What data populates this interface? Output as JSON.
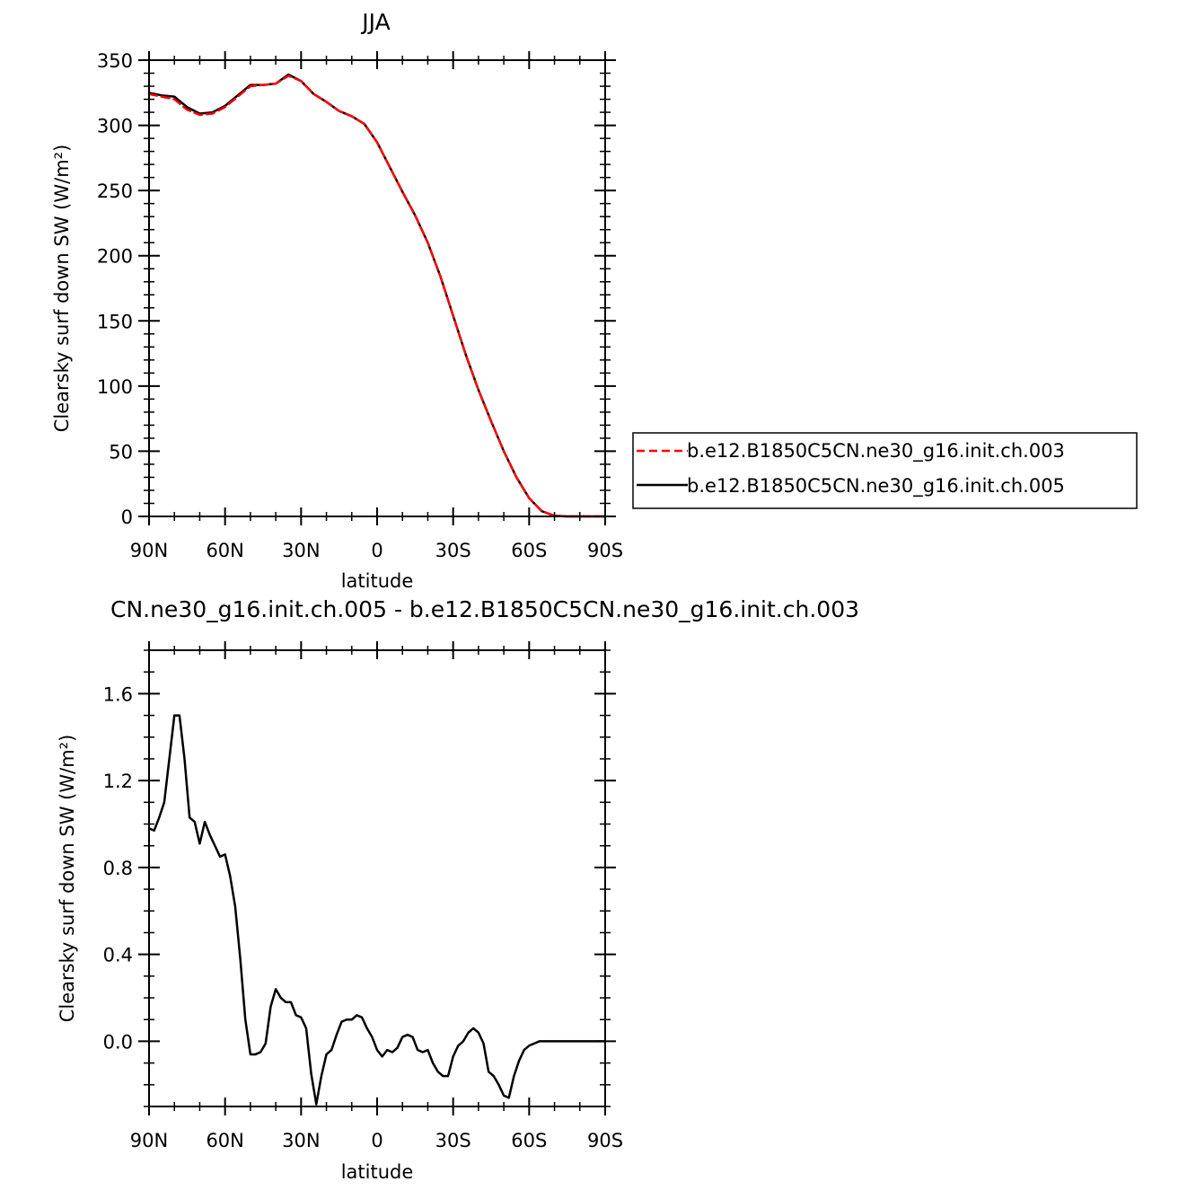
{
  "chart_data": [
    {
      "type": "line",
      "title": "JJA",
      "xlabel": "latitude",
      "ylabel": "Clearsky surf down SW (W/m²)",
      "xlim": [
        90,
        -90
      ],
      "ylim": [
        0,
        350
      ],
      "x_ticks": [
        90,
        60,
        30,
        0,
        -30,
        -60,
        -90
      ],
      "x_tick_labels": [
        "90N",
        "60N",
        "30N",
        "0",
        "30S",
        "60S",
        "90S"
      ],
      "y_ticks": [
        0,
        50,
        100,
        150,
        200,
        250,
        300,
        350
      ],
      "y_tick_labels": [
        "0",
        "50",
        "100",
        "150",
        "200",
        "250",
        "300",
        "350"
      ],
      "legend_position": "right-bottom",
      "series": [
        {
          "name": "b.e12.B1850C5CN.ne30_g16.init.ch.003",
          "color": "#ff0000",
          "dash": "dashed",
          "x": [
            90,
            85,
            80,
            75,
            70,
            65,
            60,
            55,
            50,
            45,
            40,
            35,
            30,
            25,
            20,
            15,
            10,
            5,
            0,
            -5,
            -10,
            -15,
            -20,
            -25,
            -30,
            -35,
            -40,
            -45,
            -50,
            -55,
            -60,
            -65,
            -70,
            -75,
            -80,
            -85,
            -90
          ],
          "y": [
            324,
            322,
            320,
            312,
            308,
            309,
            314,
            322,
            330,
            331,
            332,
            338,
            334,
            324,
            318,
            311,
            307,
            301,
            287,
            268,
            249,
            231,
            210,
            184,
            154,
            124,
            97,
            73,
            50,
            30,
            14,
            4,
            0.5,
            0,
            0,
            0,
            0
          ]
        },
        {
          "name": "b.e12.B1850C5CN.ne30_g16.init.ch.005",
          "color": "#000000",
          "dash": "solid",
          "x": [
            90,
            85,
            80,
            75,
            70,
            65,
            60,
            55,
            50,
            45,
            40,
            35,
            30,
            25,
            20,
            15,
            10,
            5,
            0,
            -5,
            -10,
            -15,
            -20,
            -25,
            -30,
            -35,
            -40,
            -45,
            -50,
            -55,
            -60,
            -65,
            -70,
            -75,
            -80,
            -85,
            -90
          ],
          "y": [
            325,
            323,
            322,
            314,
            309,
            310,
            315,
            323,
            331,
            331,
            332,
            339,
            334,
            324,
            318,
            311,
            307,
            301,
            287,
            268,
            249,
            231,
            210,
            184,
            154,
            124,
            97,
            73,
            50,
            30,
            14,
            4,
            0.5,
            0,
            0,
            0,
            0
          ]
        }
      ]
    },
    {
      "type": "line",
      "title": "CN.ne30_g16.init.ch.005 - b.e12.B1850C5CN.ne30_g16.init.ch.003",
      "xlabel": "latitude",
      "ylabel": "Clearsky surf down SW (W/m²)",
      "xlim": [
        90,
        -90
      ],
      "ylim": [
        -0.3,
        1.8
      ],
      "x_ticks": [
        90,
        60,
        30,
        0,
        -30,
        -60,
        -90
      ],
      "x_tick_labels": [
        "90N",
        "60N",
        "30N",
        "0",
        "30S",
        "60S",
        "90S"
      ],
      "y_ticks": [
        0,
        0.4,
        0.8,
        1.2,
        1.6
      ],
      "y_tick_labels": [
        "0.0",
        "0.4",
        "0.8",
        "1.2",
        "1.6"
      ],
      "series": [
        {
          "color": "#000000",
          "dash": "solid",
          "x": [
            90,
            88,
            86,
            84,
            82,
            80,
            78,
            76,
            74,
            72,
            70,
            68,
            66,
            64,
            62,
            60,
            58,
            56,
            54,
            52,
            50,
            48,
            46,
            44,
            42,
            40,
            38,
            36,
            34,
            32,
            30,
            28,
            26,
            24,
            22,
            20,
            18,
            16,
            14,
            12,
            10,
            8,
            6,
            4,
            2,
            0,
            -2,
            -4,
            -6,
            -8,
            -10,
            -12,
            -14,
            -16,
            -18,
            -20,
            -22,
            -24,
            -26,
            -28,
            -30,
            -32,
            -34,
            -36,
            -38,
            -40,
            -42,
            -44,
            -46,
            -48,
            -50,
            -52,
            -54,
            -56,
            -58,
            -60,
            -62,
            -64,
            -66,
            -68,
            -70,
            -72,
            -74,
            -76,
            -78,
            -80,
            -82,
            -84,
            -86,
            -88,
            -90
          ],
          "y": [
            0.98,
            0.97,
            1.03,
            1.1,
            1.3,
            1.5,
            1.5,
            1.3,
            1.03,
            1.01,
            0.91,
            1.01,
            0.95,
            0.9,
            0.85,
            0.86,
            0.76,
            0.62,
            0.38,
            0.1,
            -0.06,
            -0.06,
            -0.05,
            -0.01,
            0.16,
            0.24,
            0.2,
            0.18,
            0.18,
            0.12,
            0.11,
            0.06,
            -0.15,
            -0.29,
            -0.16,
            -0.06,
            -0.04,
            0.03,
            0.09,
            0.1,
            0.1,
            0.12,
            0.11,
            0.06,
            0.02,
            -0.04,
            -0.07,
            -0.04,
            -0.05,
            -0.03,
            0.02,
            0.03,
            0.02,
            -0.04,
            -0.05,
            -0.04,
            -0.1,
            -0.14,
            -0.16,
            -0.16,
            -0.07,
            -0.02,
            0.0,
            0.04,
            0.06,
            0.04,
            -0.01,
            -0.14,
            -0.16,
            -0.2,
            -0.25,
            -0.26,
            -0.16,
            -0.09,
            -0.04,
            -0.02,
            -0.01,
            0.0,
            0.0,
            0.0,
            0.0,
            0.0,
            0.0,
            0.0,
            0.0,
            0.0,
            0.0,
            0.0,
            0.0,
            0.0,
            0.0
          ]
        }
      ]
    }
  ]
}
